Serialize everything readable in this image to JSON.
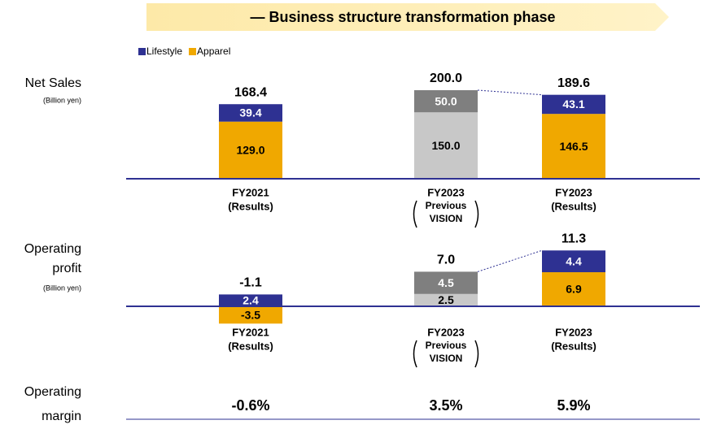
{
  "banner": "— Business structure transformation phase",
  "chart_data": [
    {
      "type": "stacked-bar",
      "y_label": [
        "Net Sales"
      ],
      "unit": "(Billion yen)",
      "categories": [
        [
          "FY2021",
          "(Results)"
        ],
        [
          "FY2023",
          "Previous",
          "VISION"
        ],
        [
          "FY2023",
          "(Results)"
        ]
      ],
      "series": [
        {
          "name": "Apparel",
          "color": "#f0a800",
          "colors": [
            "#f0a800",
            "#c8c8c8",
            "#f0a800"
          ],
          "values": [
            129.0,
            150.0,
            146.5
          ],
          "value_labels": [
            "129.0",
            "150.0",
            "146.5"
          ]
        },
        {
          "name": "Lifestyle",
          "color": "#2e3192",
          "colors": [
            "#2e3192",
            "#7f7f7f",
            "#2e3192"
          ],
          "values": [
            39.4,
            50.0,
            43.1
          ],
          "value_labels": [
            "39.4",
            "50.0",
            "43.1"
          ]
        }
      ],
      "totals": [
        168.4,
        200.0,
        189.6
      ],
      "total_labels": [
        "168.4",
        "200.0",
        "189.6"
      ],
      "ylim": [
        0,
        200
      ],
      "legend": "top-left"
    },
    {
      "type": "stacked-bar",
      "y_label": [
        "Operating",
        "profit"
      ],
      "unit": "(Billion yen)",
      "categories": [
        [
          "FY2021",
          "(Results)"
        ],
        [
          "FY2023",
          "Previous",
          "VISION"
        ],
        [
          "FY2023",
          "(Results)"
        ]
      ],
      "series": [
        {
          "color": "#f0a800",
          "colors": [
            "#f0a800",
            "#c8c8c8",
            "#f0a800"
          ],
          "values": [
            -3.5,
            2.5,
            6.9
          ]
        },
        {
          "color": "#2e3192",
          "colors": [
            "#2e3192",
            "#7f7f7f",
            "#2e3192"
          ],
          "values": [
            2.4,
            4.5,
            4.4
          ]
        }
      ],
      "totals": [
        -1.1,
        7.0,
        11.3
      ],
      "total_labels": [
        "-1.1",
        "7.0",
        "11.3"
      ],
      "ylim": [
        -4,
        12
      ]
    }
  ],
  "margin": {
    "label": [
      "Operating",
      "margin"
    ],
    "values": [
      "-0.6%",
      "3.5%",
      "5.9%"
    ]
  }
}
